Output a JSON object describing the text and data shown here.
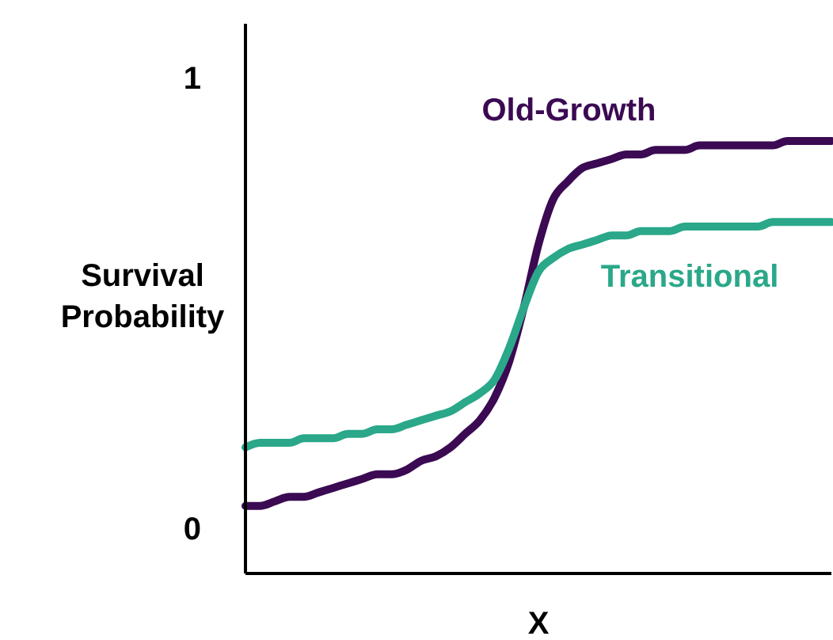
{
  "chart_data": {
    "type": "line",
    "xlabel": "X",
    "ylabel": "Survival Probability",
    "categories": [
      null,
      null,
      null,
      null,
      null,
      null,
      null,
      null,
      null,
      null,
      null,
      null,
      null,
      null,
      null,
      null,
      null,
      null,
      null,
      null,
      null,
      null,
      null,
      null,
      null,
      null,
      null,
      null,
      null,
      null,
      null,
      null,
      null,
      null,
      null,
      null,
      null,
      null,
      null,
      null,
      null
    ],
    "ylim": [
      -0.1,
      1.12
    ],
    "yticks": [
      0,
      1
    ],
    "grid": false,
    "legend": false,
    "marker": "none",
    "line_style": "solid",
    "series": [
      {
        "name": "Old-Growth",
        "color": "#3b0a52",
        "values": [
          0.05,
          0.05,
          0.06,
          0.07,
          0.07,
          0.08,
          0.09,
          0.1,
          0.11,
          0.12,
          0.12,
          0.13,
          0.15,
          0.16,
          0.18,
          0.21,
          0.24,
          0.29,
          0.37,
          0.49,
          0.63,
          0.73,
          0.77,
          0.8,
          0.81,
          0.82,
          0.83,
          0.83,
          0.84,
          0.84,
          0.84,
          0.85,
          0.85,
          0.85,
          0.85,
          0.85,
          0.85,
          0.86,
          0.86,
          0.86,
          0.86
        ]
      },
      {
        "name": "Transitional",
        "color": "#2aa889",
        "values": [
          0.18,
          0.19,
          0.19,
          0.19,
          0.2,
          0.2,
          0.2,
          0.21,
          0.21,
          0.22,
          0.22,
          0.23,
          0.24,
          0.25,
          0.26,
          0.28,
          0.3,
          0.33,
          0.4,
          0.49,
          0.57,
          0.6,
          0.62,
          0.63,
          0.64,
          0.65,
          0.65,
          0.66,
          0.66,
          0.66,
          0.67,
          0.67,
          0.67,
          0.67,
          0.67,
          0.67,
          0.68,
          0.68,
          0.68,
          0.68,
          0.68
        ]
      }
    ]
  }
}
